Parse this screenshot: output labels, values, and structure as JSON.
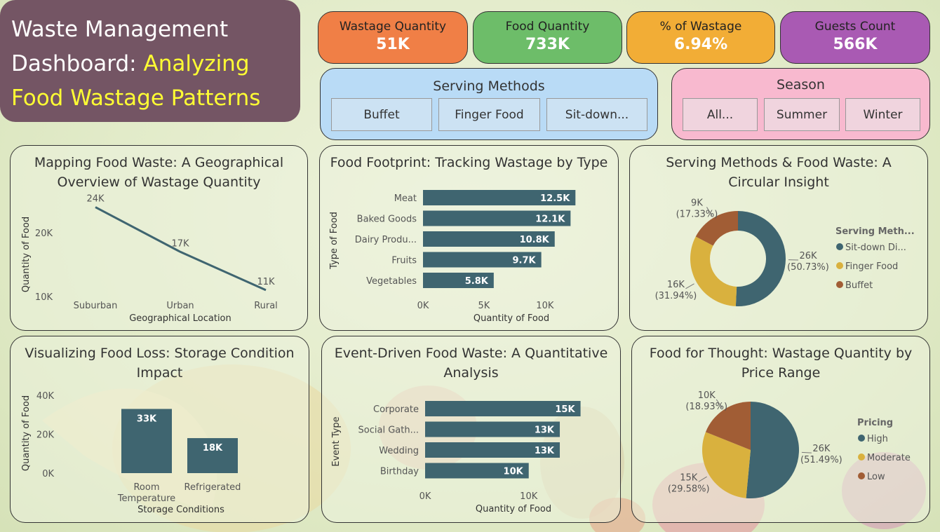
{
  "title": {
    "line1": "Waste Management",
    "line2_plain": "Dashboard: ",
    "line2_highlight": "Analyzing",
    "line3_highlight": "Food Wastage Patterns"
  },
  "kpis": [
    {
      "label": "Wastage Quantity",
      "value": "51K",
      "color": "#f07f46"
    },
    {
      "label": "Food Quantity",
      "value": "733K",
      "color": "#6dbd69"
    },
    {
      "label": "% of Wastage",
      "value": "6.94%",
      "color": "#f2ad36"
    },
    {
      "label": "Guests Count",
      "value": "566K",
      "color": "#a95ab3"
    }
  ],
  "slicers": {
    "serving": {
      "title": "Serving Methods",
      "options": [
        "Buffet",
        "Finger Food",
        "Sit-down..."
      ],
      "bg": "#b9dbf6",
      "btn_bg": "#cce2f3"
    },
    "season": {
      "title": "Season",
      "options": [
        "All...",
        "Summer",
        "Winter"
      ],
      "bg": "#f8b9cf",
      "btn_bg": "#f0d4de"
    }
  },
  "colors": {
    "primary": "#3f6570",
    "gold": "#d9b13e",
    "rust": "#a15d35"
  },
  "chart_data": [
    {
      "id": "geo",
      "type": "line",
      "title": "Mapping Food Waste: A Geographical Overview of Wastage Quantity",
      "xlabel": "Geographical Location",
      "ylabel": "Quantity of Food",
      "categories": [
        "Suburban",
        "Urban",
        "Rural"
      ],
      "values": [
        24,
        17,
        11
      ],
      "data_labels": [
        "24K",
        "17K",
        "11K"
      ],
      "yticks": [
        "10K",
        "20K"
      ]
    },
    {
      "id": "type",
      "type": "bar",
      "orientation": "horizontal",
      "title": "Food Footprint: Tracking Wastage by Type",
      "xlabel": "Quantity of Food",
      "ylabel": "Type of Food",
      "categories": [
        "Meat",
        "Baked Goods",
        "Dairy Produ...",
        "Fruits",
        "Vegetables"
      ],
      "values": [
        12.5,
        12.1,
        10.8,
        9.7,
        5.8
      ],
      "data_labels": [
        "12.5K",
        "12.1K",
        "10.8K",
        "9.7K",
        "5.8K"
      ],
      "xticks": [
        "0K",
        "5K",
        "10K"
      ],
      "xlim": [
        0,
        13
      ]
    },
    {
      "id": "serving",
      "type": "pie",
      "style": "donut",
      "title": "Serving Methods & Food Waste: A Circular Insight",
      "legend_title": "Serving Meth...",
      "labels": [
        "Sit-down Di...",
        "Finger Food",
        "Buffet"
      ],
      "values": [
        26,
        16,
        9
      ],
      "percents": [
        50.73,
        31.94,
        17.33
      ],
      "value_labels": [
        "26K",
        "16K",
        "9K"
      ],
      "percent_labels": [
        "(50.73%)",
        "(31.94%)",
        "(17.33%)"
      ]
    },
    {
      "id": "storage",
      "type": "bar",
      "orientation": "vertical",
      "title": "Visualizing Food Loss: Storage Condition Impact",
      "xlabel": "Storage Conditions",
      "ylabel": "Quantity of Food",
      "categories": [
        "Room Temperature",
        "Refrigerated"
      ],
      "category_lines": [
        [
          "Room",
          "Temperature"
        ],
        [
          "Refrigerated"
        ]
      ],
      "values": [
        33,
        18
      ],
      "data_labels": [
        "33K",
        "18K"
      ],
      "yticks": [
        "0K",
        "20K",
        "40K"
      ],
      "ylim": [
        0,
        40
      ]
    },
    {
      "id": "event",
      "type": "bar",
      "orientation": "horizontal",
      "title": "Event-Driven Food Waste: A Quantitative Analysis",
      "xlabel": "Quantity of Food",
      "ylabel": "Event Type",
      "categories": [
        "Corporate",
        "Social Gath...",
        "Wedding",
        "Birthday"
      ],
      "values": [
        15,
        13,
        13,
        10
      ],
      "data_labels": [
        "15K",
        "13K",
        "13K",
        "10K"
      ],
      "xticks": [
        "0K",
        "10K"
      ],
      "xlim": [
        0,
        15.3
      ]
    },
    {
      "id": "price",
      "type": "pie",
      "title": "Food for Thought: Wastage Quantity by Price Range",
      "legend_title": "Pricing",
      "labels": [
        "High",
        "Moderate",
        "Low"
      ],
      "values": [
        26,
        15,
        10
      ],
      "percents": [
        51.49,
        29.58,
        18.93
      ],
      "value_labels": [
        "26K",
        "15K",
        "10K"
      ],
      "percent_labels": [
        "(51.49%)",
        "(29.58%)",
        "(18.93%)"
      ]
    }
  ]
}
